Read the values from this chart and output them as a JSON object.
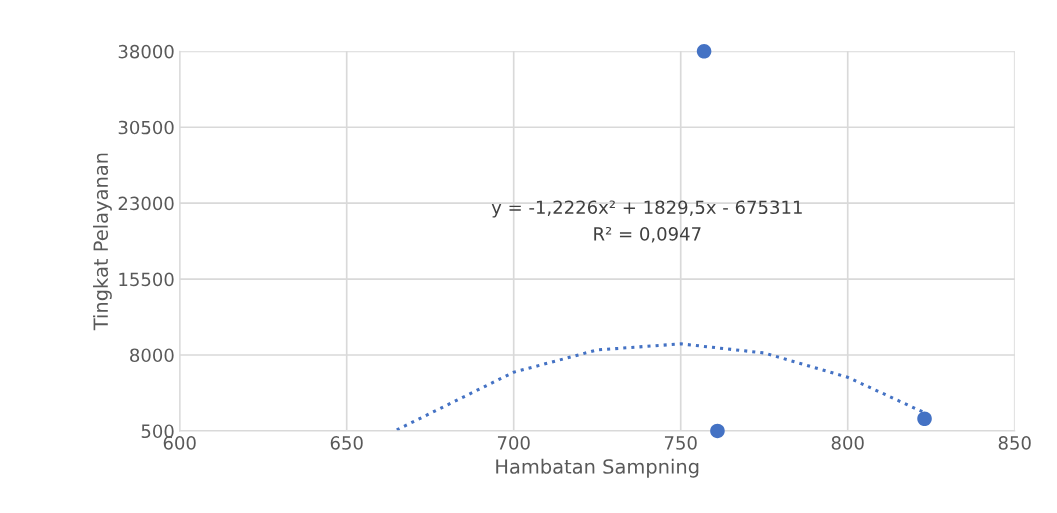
{
  "chart_data": {
    "type": "scatter",
    "xlabel": "Hambatan Sampning",
    "ylabel": "Tingkat Pelayanan",
    "series": [
      {
        "color": "#4472c4",
        "x": [
          757,
          761,
          823
        ],
        "values": [
          38000,
          500,
          1700
        ],
        "marker": "circle"
      },
      {
        "type": "line",
        "color": "#4472c4",
        "line_style": "dotted",
        "marker": "none",
        "x": [
          665,
          700,
          725,
          750,
          775,
          800,
          823
        ],
        "values": [
          600,
          6300,
          8500,
          9100,
          8200,
          5800,
          2300
        ]
      }
    ],
    "annotations": [
      "y = -1,2226x² + 1829,5x - 675311",
      "R² = 0,0947"
    ],
    "xlim": [
      600,
      850
    ],
    "xticks": [
      600,
      650,
      700,
      750,
      800,
      850
    ],
    "ylim": [
      500,
      38000
    ],
    "yticks": [
      500,
      8000,
      15500,
      23000,
      30500,
      38000
    ],
    "grid": true,
    "legend": false
  }
}
